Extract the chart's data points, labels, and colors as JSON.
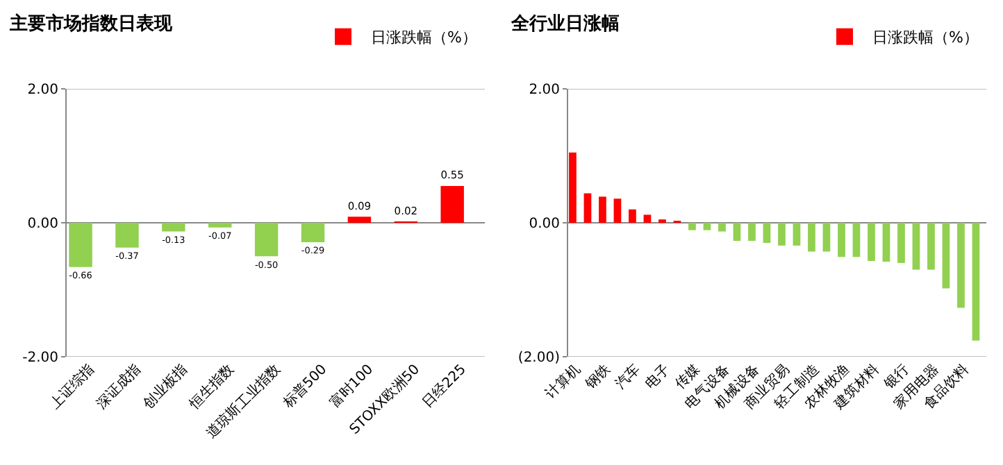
{
  "chart_data": [
    {
      "type": "bar",
      "title": "主要市场指数日表现",
      "categories": [
        "上证综指",
        "深证成指",
        "创业板指",
        "恒生指数",
        "道琼斯工业指数",
        "标普500",
        "富时100",
        "STOXX欧洲50",
        "日经225"
      ],
      "series": [
        {
          "name": "日涨跌幅（%）",
          "color": "#ff0000",
          "values": [
            -0.66,
            -0.37,
            -0.13,
            -0.07,
            -0.5,
            -0.29,
            0.09,
            0.02,
            0.55
          ],
          "colors": [
            "#92d050",
            "#92d050",
            "#92d050",
            "#92d050",
            "#92d050",
            "#92d050",
            "#ff0000",
            "#ff0000",
            "#ff0000"
          ],
          "value_labels": [
            "-0.66",
            "-0.37",
            "-0.13",
            "-0.07",
            "-0.50",
            "-0.29",
            "0.09",
            "0.02",
            "0.55"
          ]
        }
      ],
      "ylim": [
        -2,
        2
      ],
      "yticks": [
        {
          "value": -2,
          "label": "-2.00"
        },
        {
          "value": 0,
          "label": "0.00"
        },
        {
          "value": 2,
          "label": "2.00"
        }
      ],
      "grid": "y",
      "legend": "top right"
    },
    {
      "type": "bar",
      "title": "全行业日涨幅",
      "categories": [
        "计算机",
        null,
        "钢铁",
        null,
        "汽车",
        null,
        "电子",
        null,
        "传媒",
        null,
        "电气设备",
        null,
        "机械设备",
        null,
        "商业贸易",
        null,
        "轻工制造",
        null,
        "农林牧渔",
        null,
        "建筑材料",
        null,
        "银行",
        null,
        "家用电器",
        null,
        "食品饮料",
        null
      ],
      "series": [
        {
          "name": "日涨跌幅（%）",
          "color": "#ff0000",
          "values": [
            1.05,
            0.44,
            0.39,
            0.36,
            0.2,
            0.12,
            0.05,
            0.03,
            -0.11,
            -0.11,
            -0.13,
            -0.27,
            -0.27,
            -0.3,
            -0.34,
            -0.34,
            -0.43,
            -0.43,
            -0.51,
            -0.51,
            -0.57,
            -0.58,
            -0.6,
            -0.7,
            -0.7,
            -0.98,
            -1.27,
            -1.76
          ],
          "colors": [
            "#ff0000",
            "#ff0000",
            "#ff0000",
            "#ff0000",
            "#ff0000",
            "#ff0000",
            "#ff0000",
            "#ff0000",
            "#92d050",
            "#92d050",
            "#92d050",
            "#92d050",
            "#92d050",
            "#92d050",
            "#92d050",
            "#92d050",
            "#92d050",
            "#92d050",
            "#92d050",
            "#92d050",
            "#92d050",
            "#92d050",
            "#92d050",
            "#92d050",
            "#92d050",
            "#92d050",
            "#92d050",
            "#92d050"
          ]
        }
      ],
      "ylim": [
        -2,
        2
      ],
      "yticks": [
        {
          "value": -2,
          "label": "(2.00)"
        },
        {
          "value": 0,
          "label": "0.00"
        },
        {
          "value": 2,
          "label": "2.00"
        }
      ],
      "grid": "y",
      "legend": "top right"
    }
  ]
}
